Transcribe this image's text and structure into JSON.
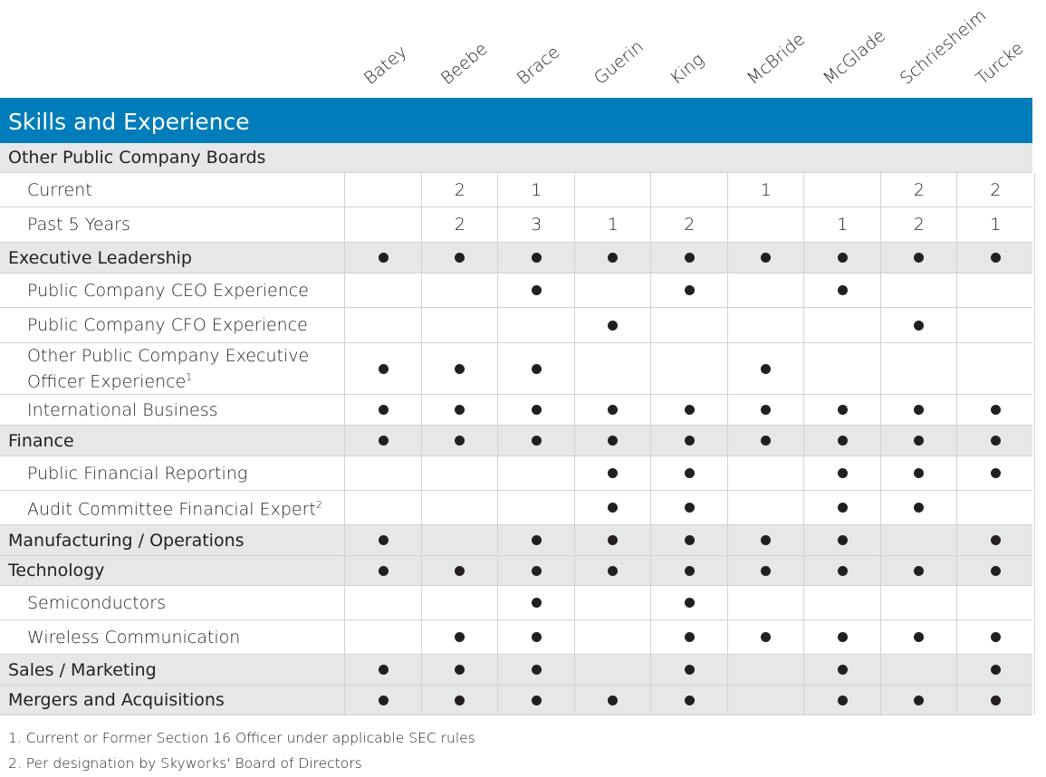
{
  "directors": [
    "Batey",
    "Beebe",
    "Brace",
    "Guerin",
    "King",
    "McBride",
    "McGlade",
    "Schriesheim",
    "Turcke"
  ],
  "title": "Skills and Experience",
  "accent_color": "#007dba",
  "rows": [
    {
      "label": "Other Public Company Boards",
      "type": "category",
      "span": true,
      "values": []
    },
    {
      "label": "Current",
      "type": "sub",
      "values": [
        "",
        "2",
        "1",
        "",
        "",
        "1",
        "",
        "2",
        "2"
      ]
    },
    {
      "label": "Past 5 Years",
      "type": "sub",
      "values": [
        "",
        "2",
        "3",
        "1",
        "2",
        "",
        "1",
        "2",
        "1"
      ]
    },
    {
      "label": "Executive Leadership",
      "type": "category",
      "values": [
        1,
        1,
        1,
        1,
        1,
        1,
        1,
        1,
        1
      ]
    },
    {
      "label": "Public Company CEO Experience",
      "type": "sub",
      "values": [
        0,
        0,
        1,
        0,
        1,
        0,
        1,
        0,
        0
      ]
    },
    {
      "label": "Public Company CFO Experience",
      "type": "sub",
      "values": [
        0,
        0,
        0,
        1,
        0,
        0,
        0,
        1,
        0
      ]
    },
    {
      "label": "Other Public Company Executive Officer Experience",
      "sup": "1",
      "type": "sub",
      "tall": true,
      "values": [
        1,
        1,
        1,
        0,
        0,
        1,
        0,
        0,
        0
      ]
    },
    {
      "label": "International Business",
      "type": "sub",
      "values": [
        1,
        1,
        1,
        1,
        1,
        1,
        1,
        1,
        1
      ]
    },
    {
      "label": "Finance",
      "type": "category",
      "values": [
        1,
        1,
        1,
        1,
        1,
        1,
        1,
        1,
        1
      ]
    },
    {
      "label": "Public Financial Reporting",
      "type": "sub",
      "values": [
        0,
        0,
        0,
        1,
        1,
        0,
        1,
        1,
        1
      ]
    },
    {
      "label": "Audit Committee Financial Expert",
      "sup": "2",
      "type": "sub",
      "values": [
        0,
        0,
        0,
        1,
        1,
        0,
        1,
        1,
        0
      ]
    },
    {
      "label": "Manufacturing / Operations",
      "type": "category",
      "values": [
        1,
        0,
        1,
        1,
        1,
        1,
        1,
        0,
        1
      ]
    },
    {
      "label": "Technology",
      "type": "category",
      "values": [
        1,
        1,
        1,
        1,
        1,
        1,
        1,
        1,
        1
      ]
    },
    {
      "label": "Semiconductors",
      "type": "sub",
      "values": [
        0,
        0,
        1,
        0,
        1,
        0,
        0,
        0,
        0
      ]
    },
    {
      "label": "Wireless Communication",
      "type": "sub",
      "values": [
        0,
        1,
        1,
        0,
        1,
        1,
        1,
        1,
        1
      ]
    },
    {
      "label": "Sales / Marketing",
      "type": "category",
      "values": [
        1,
        1,
        1,
        0,
        1,
        0,
        1,
        0,
        1
      ]
    },
    {
      "label": "Mergers and Acquisitions",
      "type": "category",
      "values": [
        1,
        1,
        1,
        1,
        1,
        0,
        1,
        1,
        1
      ]
    }
  ],
  "footnotes": [
    "1. Current or Former Section 16 Officer under applicable SEC rules",
    "2. Per designation by Skyworks' Board of Directors"
  ]
}
